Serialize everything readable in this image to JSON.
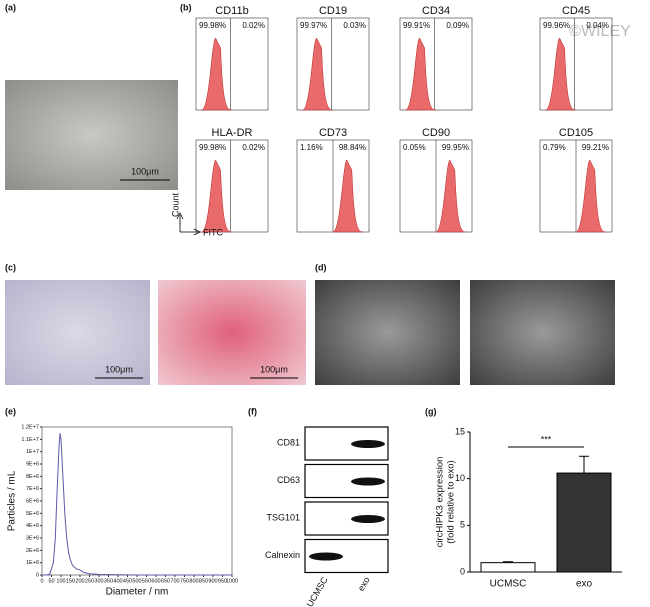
{
  "panels": [
    "(a)",
    "(b)",
    "(c)",
    "(d)",
    "(e)",
    "(f)",
    "(g)"
  ],
  "watermark": "©WILEY",
  "scale_bars": [
    "100μm",
    "100μm",
    "100μm"
  ],
  "flow": {
    "markers": [
      {
        "name": "CD11b",
        "left": "99.98%",
        "right": "0.02%"
      },
      {
        "name": "CD19",
        "left": "99.97%",
        "right": "0.03%"
      },
      {
        "name": "CD34",
        "left": "99.91%",
        "right": "0.09%"
      },
      {
        "name": "CD45",
        "left": "99.96%",
        "right": "0.04%"
      },
      {
        "name": "HLA-DR",
        "left": "99.98%",
        "right": "0.02%"
      },
      {
        "name": "CD73",
        "left": "1.16%",
        "right": "98.84%"
      },
      {
        "name": "CD90",
        "left": "0.05%",
        "right": "99.95%"
      },
      {
        "name": "CD105",
        "left": "0.79%",
        "right": "99.21%"
      }
    ],
    "y_label": "Count",
    "x_label": "FITC"
  },
  "blot": {
    "rows": [
      "CD81",
      "CD63",
      "TSG101",
      "Calnexin"
    ],
    "lanes": [
      "UCMSC",
      "exo"
    ]
  },
  "chart_data": [
    {
      "type": "line",
      "x_label": "Diameter / nm",
      "y_label": "Particles / mL",
      "color": "#5a5aa8",
      "x": [
        0,
        20,
        40,
        60,
        70,
        80,
        90,
        95,
        100,
        110,
        120,
        130,
        140,
        150,
        160,
        180,
        200,
        220,
        250,
        300,
        400,
        500,
        600,
        700,
        800,
        900,
        1000
      ],
      "values": [
        0,
        0,
        50000,
        1000000,
        3000000,
        7000000,
        10500000,
        11500000,
        11000000,
        8000000,
        5000000,
        3000000,
        1800000,
        1200000,
        800000,
        500000,
        400000,
        200000,
        100000,
        50000,
        20000,
        0,
        0,
        0,
        0,
        0,
        0
      ],
      "xlim": [
        0,
        1000
      ],
      "xticks": [
        0,
        50,
        100,
        150,
        200,
        250,
        300,
        350,
        400,
        450,
        500,
        550,
        600,
        650,
        700,
        750,
        800,
        850,
        900,
        950,
        1000
      ],
      "ylim": [
        0,
        12000000
      ],
      "yticks": [
        0,
        {
          "value": 1000000,
          "label": "1E+6"
        },
        {
          "value": 2000000,
          "label": "2E+6"
        },
        {
          "value": 3000000,
          "label": "3E+6"
        },
        {
          "value": 4000000,
          "label": "4E+6"
        },
        {
          "value": 5000000,
          "label": "5E+6"
        },
        {
          "value": 6000000,
          "label": "6E+6"
        },
        {
          "value": 7000000,
          "label": "7E+6"
        },
        {
          "value": 8000000,
          "label": "8E+6"
        },
        {
          "value": 9000000,
          "label": "9E+6"
        },
        {
          "value": 10000000,
          "label": "1E+7"
        },
        {
          "value": 11000000,
          "label": "1.1E+7"
        },
        {
          "value": 12000000,
          "label": "1.2E+7"
        }
      ]
    },
    {
      "type": "bar",
      "y_label": [
        "circHIPK3 expression",
        "(fold relative to exo)"
      ],
      "categories": [
        "UCMSC",
        "exo"
      ],
      "values": [
        1,
        10.6
      ],
      "errors": [
        0.1,
        1.8
      ],
      "colors": [
        "#ffffff",
        "#333333"
      ],
      "ylim": [
        0,
        15
      ],
      "yticks": [
        0,
        5,
        10,
        15
      ],
      "annotation": "***"
    }
  ]
}
